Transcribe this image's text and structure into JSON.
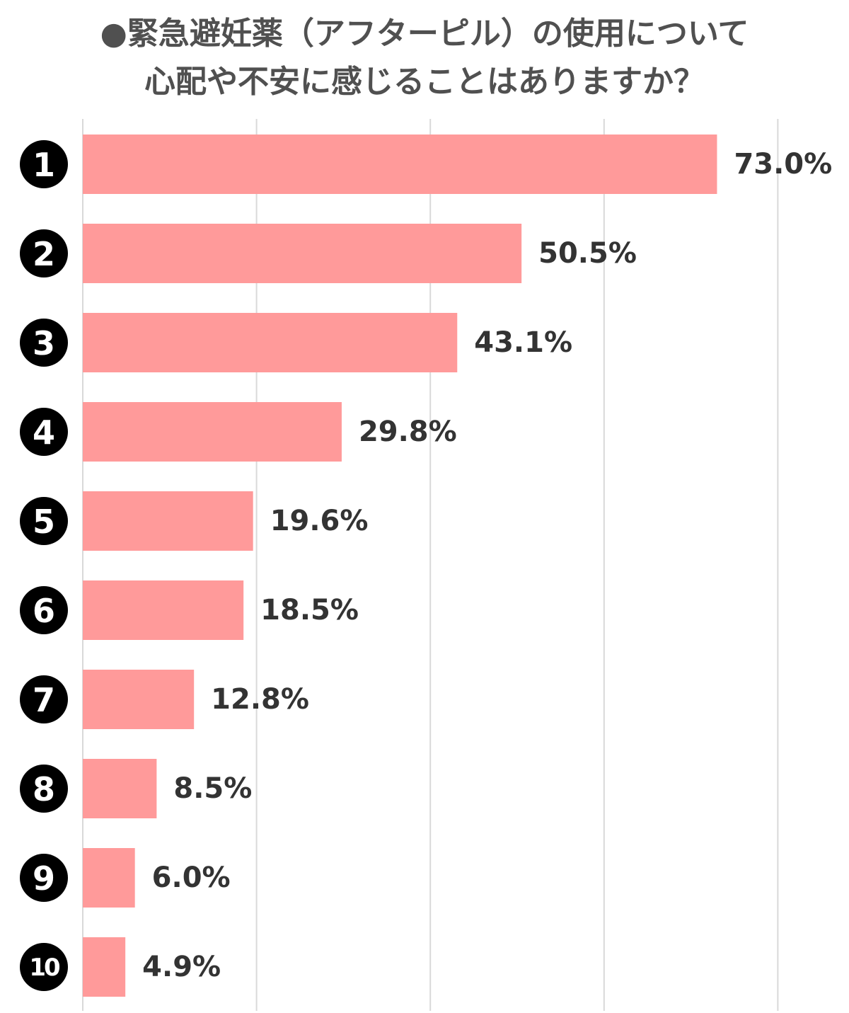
{
  "chart_data": {
    "type": "bar",
    "orientation": "horizontal",
    "title_lines": [
      "●緊急避妊薬（アフターピル）の使用について",
      "心配や不安に感じることはありますか？"
    ],
    "categories": [
      "1",
      "2",
      "3",
      "4",
      "5",
      "6",
      "7",
      "8",
      "9",
      "10"
    ],
    "values": [
      73.0,
      50.5,
      43.1,
      29.8,
      19.6,
      18.5,
      12.8,
      8.5,
      6.0,
      4.9
    ],
    "value_labels": [
      "73.0%",
      "50.5%",
      "43.1%",
      "29.8%",
      "19.6%",
      "18.5%",
      "12.8%",
      "8.5%",
      "6.0%",
      "4.9%"
    ],
    "xlim": [
      0,
      80
    ],
    "grid": true,
    "legend": "none",
    "bar_color": "#ff9a9a",
    "rank_marker_color": "#000000",
    "gridline_color": "#d9d9d9",
    "title_color": "#505050",
    "label_color": "#333333"
  }
}
